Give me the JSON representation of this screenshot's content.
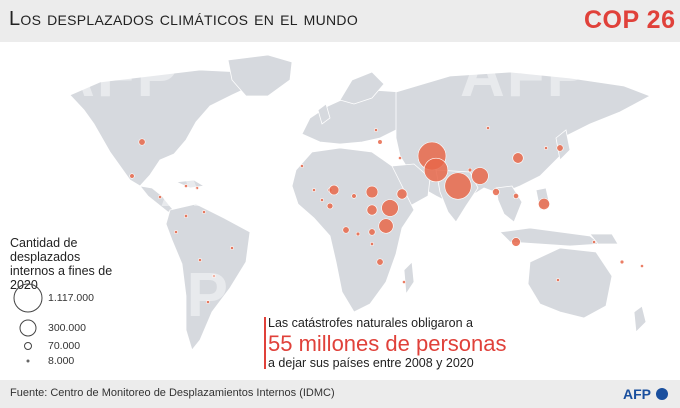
{
  "header": {
    "title": "Los desplazados climáticos en el mundo",
    "logo": "COP 26"
  },
  "legend": {
    "title": "Cantidad de desplazados internos a fines de 2020",
    "items": [
      {
        "label": "1.117.000",
        "value": 1117000
      },
      {
        "label": "300.000",
        "value": 300000
      },
      {
        "label": "70.000",
        "value": 70000
      },
      {
        "label": "8.000",
        "value": 8000
      }
    ]
  },
  "info": {
    "line1": "Las catástrofes naturales obligaron a",
    "highlight": "55 millones de personas",
    "line3": "a dejar sus países entre 2008 y 2020"
  },
  "footer": {
    "source": "Fuente: Centro de Monitoreo de Desplazamientos Internos (IDMC)",
    "agency": "AFP"
  },
  "watermark": "AFP",
  "colors": {
    "accent": "#e0413a",
    "land": "#d6d9de",
    "header_bg": "#ececec",
    "bubble": "#e8674a"
  },
  "bubbles": [
    {
      "name": "usa",
      "value": 60000
    },
    {
      "name": "mexico",
      "value": 30000
    },
    {
      "name": "cuba",
      "value": 8000
    },
    {
      "name": "haiti",
      "value": 8000
    },
    {
      "name": "guatemala",
      "value": 10000
    },
    {
      "name": "colombia",
      "value": 15000
    },
    {
      "name": "venezuela",
      "value": 8000
    },
    {
      "name": "ecuador",
      "value": 8000
    },
    {
      "name": "peru",
      "value": 8000
    },
    {
      "name": "brazil",
      "value": 8000
    },
    {
      "name": "bolivia",
      "value": 8000
    },
    {
      "name": "argentina",
      "value": 8000
    },
    {
      "name": "morocco",
      "value": 8000
    },
    {
      "name": "niger",
      "value": 25000
    },
    {
      "name": "mali",
      "value": 10000
    },
    {
      "name": "burkina-faso",
      "value": 8000
    },
    {
      "name": "nigeria",
      "value": 140000
    },
    {
      "name": "chad",
      "value": 30000
    },
    {
      "name": "cameroon",
      "value": 50000
    },
    {
      "name": "south-sudan",
      "value": 200000
    },
    {
      "name": "sudan",
      "value": 150000
    },
    {
      "name": "ethiopia",
      "value": 400000
    },
    {
      "name": "somalia",
      "value": 300000
    },
    {
      "name": "yemen",
      "value": 150000
    },
    {
      "name": "kenya",
      "value": 60000
    },
    {
      "name": "drc",
      "value": 60000
    },
    {
      "name": "congo",
      "value": 20000
    },
    {
      "name": "tanzania",
      "value": 15000
    },
    {
      "name": "mozambique",
      "value": 60000
    },
    {
      "name": "madagascar",
      "value": 10000
    },
    {
      "name": "syria",
      "value": 30000
    },
    {
      "name": "iraq",
      "value": 10000
    },
    {
      "name": "afghanistan",
      "value": 1117000
    },
    {
      "name": "pakistan",
      "value": 800000
    },
    {
      "name": "india",
      "value": 1000000
    },
    {
      "name": "nepal",
      "value": 20000
    },
    {
      "name": "bangladesh",
      "value": 400000
    },
    {
      "name": "myanmar",
      "value": 70000
    },
    {
      "name": "china",
      "value": 160000
    },
    {
      "name": "japan",
      "value": 60000
    },
    {
      "name": "korea",
      "value": 8000
    },
    {
      "name": "philippines",
      "value": 180000
    },
    {
      "name": "vietnam",
      "value": 40000
    },
    {
      "name": "indonesia",
      "value": 110000
    },
    {
      "name": "png",
      "value": 10000
    },
    {
      "name": "vanuatu",
      "value": 20000
    },
    {
      "name": "fiji",
      "value": 8000
    },
    {
      "name": "nz",
      "value": 8000
    },
    {
      "name": "mongolia",
      "value": 8000
    },
    {
      "name": "turkey",
      "value": 8000
    }
  ]
}
